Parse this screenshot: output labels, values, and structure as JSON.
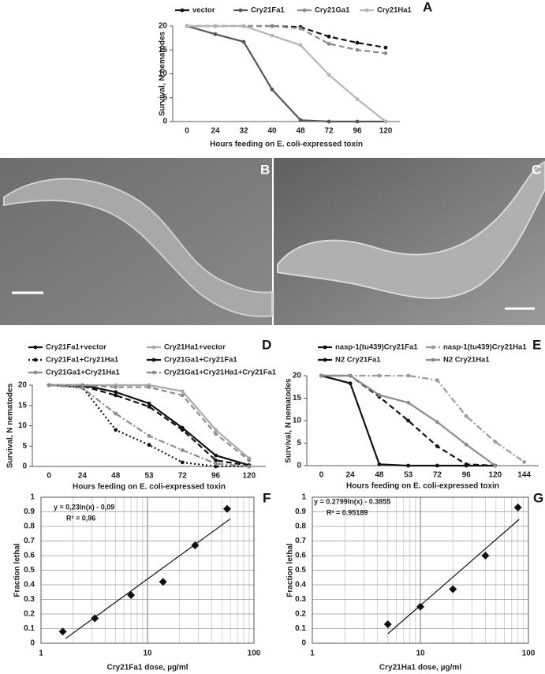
{
  "chart_data": [
    {
      "type": "line",
      "panel": "A",
      "categories": [
        "0",
        "24",
        "32",
        "40",
        "48",
        "72",
        "96",
        "120"
      ],
      "x_label": "Hours feeding on E. coli-expressed toxin",
      "y_label": "Survival, N nematodes",
      "ylim": [
        0,
        20
      ],
      "yticks": [
        0,
        5,
        10,
        15,
        20
      ],
      "series": [
        {
          "name": "vector",
          "color": "#111111",
          "dash": "dashed",
          "values": [
            20,
            20,
            20,
            20,
            19.8,
            17.8,
            16.5,
            15.5
          ]
        },
        {
          "name": "Cry21Fa1",
          "color": "#555555",
          "dash": "solid",
          "values": [
            20,
            18.3,
            16.7,
            6.7,
            0.3,
            0,
            0,
            0
          ]
        },
        {
          "name": "Cry21Ga1",
          "color": "#8c8c8c",
          "dash": "dashed",
          "values": [
            20,
            20,
            20,
            20,
            19.5,
            16.3,
            15,
            14.3
          ]
        },
        {
          "name": "Cry21Ha1",
          "color": "#b5b5b5",
          "dash": "solid",
          "values": [
            20,
            20,
            20,
            18,
            16,
            9.8,
            4.7,
            0
          ]
        }
      ]
    },
    {
      "type": "line",
      "panel": "D",
      "categories": [
        "0",
        "24",
        "48",
        "53",
        "72",
        "96",
        "120"
      ],
      "x_label": "Hours feeding on E. coli-expressed toxin",
      "y_label": "Survival, N nematodes",
      "ylim": [
        0,
        20
      ],
      "yticks": [
        0,
        5,
        10,
        15,
        20
      ],
      "series": [
        {
          "name": "Cry21Fa1+vector",
          "color": "#111111",
          "dash": "solid",
          "values": [
            20,
            20,
            18.3,
            15.5,
            9.5,
            2.7,
            0.3
          ]
        },
        {
          "name": "Cry21Ha1+vector",
          "color": "#a8a8a8",
          "dash": "solid",
          "values": [
            20,
            20,
            20,
            20,
            18.5,
            9,
            2
          ]
        },
        {
          "name": "Cry21Fa1+Cry21Ha1",
          "color": "#111111",
          "dash": "dotted",
          "values": [
            20,
            19.5,
            9,
            5.3,
            1,
            0,
            0
          ]
        },
        {
          "name": "Cry21Ga1+Cry21Fa1",
          "color": "#111111",
          "dash": "dashed",
          "values": [
            20,
            19.8,
            17.5,
            14.7,
            9,
            1.5,
            0.2
          ]
        },
        {
          "name": "Cry21Ga1+Cry21Ha1",
          "color": "#8c8c8c",
          "dash": "dashed",
          "values": [
            20,
            20,
            19.5,
            19.5,
            17.5,
            8,
            1.5
          ]
        },
        {
          "name": "Cry21Ga1+Cry21Ha1+Cry21Fa1",
          "color": "#8c8c8c",
          "dash": "dashdot",
          "values": [
            20,
            19.3,
            13,
            7.5,
            4,
            0.7,
            0
          ]
        }
      ]
    },
    {
      "type": "line",
      "panel": "E",
      "categories": [
        "0",
        "24",
        "48",
        "53",
        "72",
        "96",
        "120",
        "144"
      ],
      "x_label": "Hours feeding on E. coli-expressed toxin",
      "y_label": "Survival, N nematodes",
      "ylim": [
        0,
        20
      ],
      "yticks": [
        0,
        5,
        10,
        15,
        20
      ],
      "series": [
        {
          "name": "nasp-1(tu439)Cry21Fa1",
          "color": "#111111",
          "dash": "dashed",
          "values": [
            20,
            20,
            15.3,
            10,
            4.3,
            0.3,
            0,
            null
          ]
        },
        {
          "name": "nasp-1(tu439)Cry21Ha1",
          "color": "#9a9a9a",
          "dash": "dashdot",
          "values": [
            20,
            20,
            20,
            20,
            19,
            11,
            5.3,
            0.8
          ]
        },
        {
          "name": "N2 Cry21Fa1",
          "color": "#111111",
          "dash": "solid",
          "values": [
            20,
            18.3,
            0.3,
            0,
            0,
            0,
            0,
            null
          ]
        },
        {
          "name": "N2 Cry21Ha1",
          "color": "#8c8c8c",
          "dash": "solid",
          "values": [
            20,
            20,
            15.7,
            14,
            9.7,
            4.7,
            0,
            null
          ]
        }
      ]
    },
    {
      "type": "scatter",
      "panel": "F",
      "log_x": true,
      "grid": true,
      "x_label": "Cry21Fa1 dose, µg/ml",
      "y_label": "Fraction lethal",
      "xlim": [
        1,
        100
      ],
      "xticks": [
        1,
        10,
        100
      ],
      "x_minor_grid": [
        2,
        3,
        4,
        5,
        6,
        7,
        8,
        9,
        20,
        30,
        40,
        50,
        60,
        70,
        80,
        90
      ],
      "ylim": [
        0,
        1
      ],
      "yticks": [
        0,
        0.1,
        0.2,
        0.3,
        0.4,
        0.5,
        0.6,
        0.7,
        0.8,
        0.9,
        1
      ],
      "x": [
        1.6,
        3.2,
        7,
        14,
        28,
        56
      ],
      "values": [
        0.08,
        0.17,
        0.33,
        0.42,
        0.67,
        0.92
      ],
      "color": "#111111",
      "trendline": {
        "label": "y = 0,23ln(x) - 0,09",
        "r2_label": "R² = 0,96",
        "slope": 0.23,
        "intercept": -0.09,
        "x_range": [
          1.7,
          60
        ]
      }
    },
    {
      "type": "scatter",
      "panel": "G",
      "log_x": true,
      "grid": true,
      "x_label": "Cry21Ha1 dose, µg/ml",
      "y_label": "Fraction lethal",
      "xlim": [
        1,
        100
      ],
      "xticks": [
        1,
        10,
        100
      ],
      "x_minor_grid": [
        2,
        3,
        4,
        5,
        6,
        7,
        8,
        9,
        20,
        30,
        40,
        50,
        60,
        70,
        80,
        90
      ],
      "ylim": [
        0,
        1
      ],
      "yticks": [
        0,
        0.1,
        0.2,
        0.3,
        0.4,
        0.5,
        0.6,
        0.7,
        0.8,
        0.9,
        1
      ],
      "x": [
        5,
        10,
        20,
        40,
        80
      ],
      "values": [
        0.13,
        0.25,
        0.37,
        0.6,
        0.93
      ],
      "color": "#111111",
      "trendline": {
        "label": "y = 0.2799ln(x) - 0.3855",
        "r2_label": "R² = 0.95189",
        "slope": 0.2799,
        "intercept": -0.3855,
        "x_range": [
          5,
          82
        ]
      }
    }
  ],
  "images": [
    {
      "panel": "B"
    },
    {
      "panel": "C"
    }
  ]
}
